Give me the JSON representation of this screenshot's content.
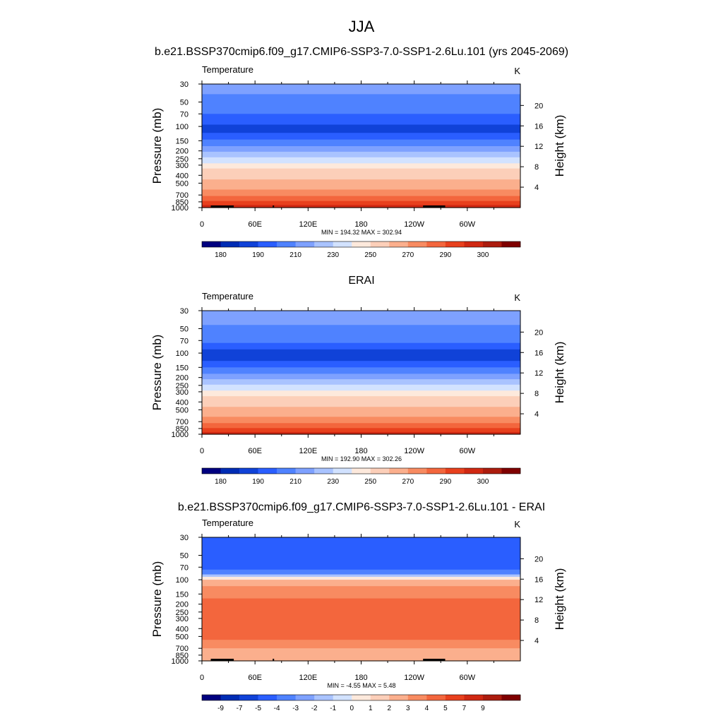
{
  "title": "JJA",
  "chart_data": [
    {
      "type": "heatmap",
      "title": "b.e21.BSSP370cmip6.f09_g17.CMIP6-SSP3-7.0-SSP1-2.6Lu.101 (yrs 2045-2069)",
      "left_string": "Temperature",
      "units": "K",
      "ylabel": "Pressure (mb)",
      "ylabel_right": "Height (km)",
      "y_ticks": [
        "30",
        "50",
        "70",
        "100",
        "150",
        "200",
        "250",
        "300",
        "400",
        "500",
        "700",
        "850",
        "1000"
      ],
      "y_right_ticks": [
        "20",
        "16",
        "12",
        "8",
        "4"
      ],
      "x_ticks": [
        "0",
        "60E",
        "120E",
        "180",
        "120W",
        "60W"
      ],
      "xlim": [
        0,
        360
      ],
      "ylim": [
        1000,
        30
      ],
      "stats": "MIN = 194.32  MAX = 302.94",
      "colorbar_labels": [
        "180",
        "190",
        "210",
        "230",
        "250",
        "270",
        "290",
        "300"
      ],
      "colorbar_colors": [
        "#00007f",
        "#002cb4",
        "#1042d8",
        "#2a5eff",
        "#4f82ff",
        "#7ea1ff",
        "#a9c3ff",
        "#d2e2ff",
        "#fde9dc",
        "#fccfb9",
        "#fbaf8d",
        "#f88b61",
        "#f3663d",
        "#e8401d",
        "#d02812",
        "#ac1c0e",
        "#7f0000"
      ],
      "profile": [
        {
          "p": 30,
          "color": "#7ea1ff"
        },
        {
          "p": 40,
          "color": "#4f82ff"
        },
        {
          "p": 70,
          "color": "#2a5eff"
        },
        {
          "p": 95,
          "color": "#1042d8"
        },
        {
          "p": 120,
          "color": "#2a5eff"
        },
        {
          "p": 145,
          "color": "#4f82ff"
        },
        {
          "p": 175,
          "color": "#7ea1ff"
        },
        {
          "p": 205,
          "color": "#a9c3ff"
        },
        {
          "p": 240,
          "color": "#d2e2ff"
        },
        {
          "p": 285,
          "color": "#fde9dc"
        },
        {
          "p": 330,
          "color": "#fccfb9"
        },
        {
          "p": 450,
          "color": "#fbaf8d"
        },
        {
          "p": 600,
          "color": "#f88b61"
        },
        {
          "p": 720,
          "color": "#f3663d"
        },
        {
          "p": 830,
          "color": "#e8401d"
        },
        {
          "p": 930,
          "color": "#d02812"
        },
        {
          "p": 1000,
          "color": "#d02812"
        }
      ],
      "terrain": [
        [
          10,
          35
        ],
        [
          30,
          36
        ],
        [
          80,
          81
        ],
        [
          250,
          275
        ]
      ]
    },
    {
      "type": "heatmap",
      "title": "ERAI",
      "left_string": "Temperature",
      "units": "K",
      "ylabel": "Pressure (mb)",
      "ylabel_right": "Height (km)",
      "y_ticks": [
        "30",
        "50",
        "70",
        "100",
        "150",
        "200",
        "250",
        "300",
        "400",
        "500",
        "700",
        "850",
        "1000"
      ],
      "y_right_ticks": [
        "20",
        "16",
        "12",
        "8",
        "4"
      ],
      "x_ticks": [
        "0",
        "60E",
        "120E",
        "180",
        "120W",
        "60W"
      ],
      "xlim": [
        0,
        360
      ],
      "ylim": [
        1000,
        30
      ],
      "stats": "MIN = 192.90  MAX = 302.26",
      "colorbar_labels": [
        "180",
        "190",
        "210",
        "230",
        "250",
        "270",
        "290",
        "300"
      ],
      "colorbar_colors": [
        "#00007f",
        "#002cb4",
        "#1042d8",
        "#2a5eff",
        "#4f82ff",
        "#7ea1ff",
        "#a9c3ff",
        "#d2e2ff",
        "#fde9dc",
        "#fccfb9",
        "#fbaf8d",
        "#f88b61",
        "#f3663d",
        "#e8401d",
        "#d02812",
        "#ac1c0e",
        "#7f0000"
      ],
      "profile": [
        {
          "p": 30,
          "color": "#7ea1ff"
        },
        {
          "p": 45,
          "color": "#4f82ff"
        },
        {
          "p": 75,
          "color": "#2a5eff"
        },
        {
          "p": 90,
          "color": "#1042d8"
        },
        {
          "p": 125,
          "color": "#2a5eff"
        },
        {
          "p": 150,
          "color": "#4f82ff"
        },
        {
          "p": 180,
          "color": "#7ea1ff"
        },
        {
          "p": 210,
          "color": "#a9c3ff"
        },
        {
          "p": 245,
          "color": "#d2e2ff"
        },
        {
          "p": 290,
          "color": "#fde9dc"
        },
        {
          "p": 340,
          "color": "#fccfb9"
        },
        {
          "p": 460,
          "color": "#fbaf8d"
        },
        {
          "p": 610,
          "color": "#f88b61"
        },
        {
          "p": 730,
          "color": "#f3663d"
        },
        {
          "p": 840,
          "color": "#e8401d"
        },
        {
          "p": 940,
          "color": "#d02812"
        },
        {
          "p": 1000,
          "color": "#d02812"
        }
      ],
      "terrain": []
    },
    {
      "type": "heatmap",
      "title": "b.e21.BSSP370cmip6.f09_g17.CMIP6-SSP3-7.0-SSP1-2.6Lu.101 - ERAI",
      "left_string": "Temperature",
      "units": "K",
      "ylabel": "Pressure (mb)",
      "ylabel_right": "Height (km)",
      "y_ticks": [
        "30",
        "50",
        "70",
        "100",
        "150",
        "200",
        "250",
        "300",
        "400",
        "500",
        "700",
        "850",
        "1000"
      ],
      "y_right_ticks": [
        "20",
        "16",
        "12",
        "8",
        "4"
      ],
      "x_ticks": [
        "0",
        "60E",
        "120E",
        "180",
        "120W",
        "60W"
      ],
      "xlim": [
        0,
        360
      ],
      "ylim": [
        1000,
        30
      ],
      "stats": "MIN =  -4.55  MAX =   5.48",
      "colorbar_labels": [
        "-9",
        "-7",
        "-5",
        "-4",
        "-3",
        "-2",
        "-1",
        "0",
        "1",
        "2",
        "3",
        "4",
        "5",
        "7",
        "9"
      ],
      "colorbar_colors": [
        "#00007f",
        "#002cb4",
        "#1042d8",
        "#2a5eff",
        "#4f82ff",
        "#7ea1ff",
        "#a9c3ff",
        "#d2e2ff",
        "#fde9dc",
        "#fccfb9",
        "#fbaf8d",
        "#f88b61",
        "#f3663d",
        "#e8401d",
        "#d02812",
        "#ac1c0e",
        "#7f0000"
      ],
      "profile": [
        {
          "p": 30,
          "color": "#2a5eff"
        },
        {
          "p": 75,
          "color": "#4f82ff"
        },
        {
          "p": 86,
          "color": "#a9c3ff"
        },
        {
          "p": 92,
          "color": "#fde9dc"
        },
        {
          "p": 100,
          "color": "#fbaf8d"
        },
        {
          "p": 120,
          "color": "#f88b61"
        },
        {
          "p": 170,
          "color": "#f3663d"
        },
        {
          "p": 550,
          "color": "#f88b61"
        },
        {
          "p": 700,
          "color": "#fbaf8d"
        },
        {
          "p": 1000,
          "color": "#fbaf8d"
        }
      ],
      "terrain": [
        [
          10,
          35
        ],
        [
          30,
          36
        ],
        [
          80,
          81
        ],
        [
          250,
          275
        ]
      ]
    }
  ]
}
